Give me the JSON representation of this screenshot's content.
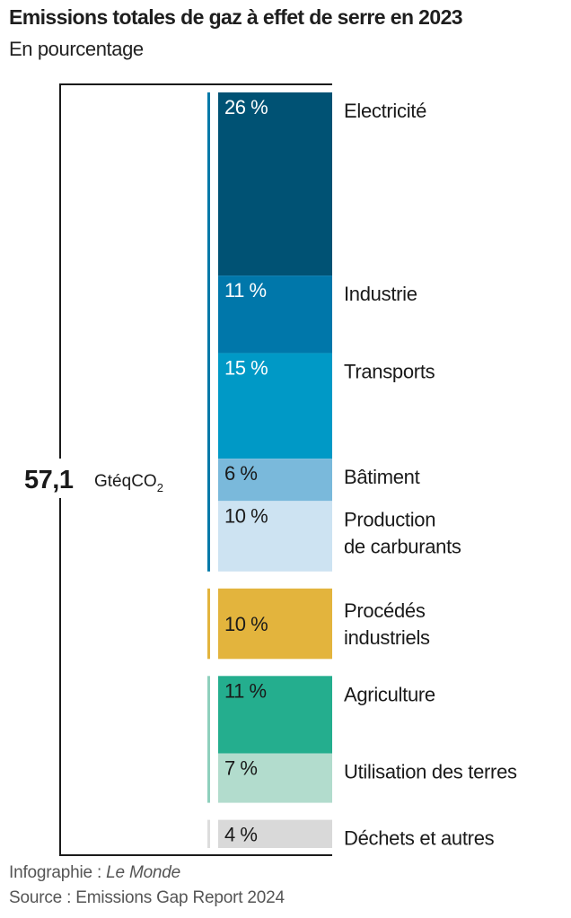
{
  "header": {
    "title": "Emissions totales de gaz à effet de serre en 2023",
    "subtitle": "En pourcentage"
  },
  "total": {
    "value": "57,1",
    "unit": "GtéqCO",
    "unit_subscript": "2"
  },
  "footer": {
    "credit_prefix": "Infographie : ",
    "credit_name": "Le Monde",
    "source": "Source : Emissions Gap Report 2024"
  },
  "chart_data": {
    "type": "bar",
    "subtype": "stacked-single-column-grouped",
    "title": "Emissions totales de gaz à effet de serre en 2023",
    "subtitle": "En pourcentage",
    "total": 57.1,
    "total_unit": "GtéqCO2",
    "unit": "%",
    "groups": [
      {
        "name": "energy",
        "indicator_color": "#0079a8",
        "segments": [
          {
            "label": "Electricité",
            "value": 26,
            "value_label": "26 %",
            "color": "#005274",
            "text_color": "#ffffff"
          },
          {
            "label": "Industrie",
            "value": 11,
            "value_label": "11 %",
            "color": "#0077aa",
            "text_color": "#ffffff"
          },
          {
            "label": "Transports",
            "value": 15,
            "value_label": "15 %",
            "color": "#0099c6",
            "text_color": "#ffffff"
          },
          {
            "label": "Bâtiment",
            "value": 6,
            "value_label": "6 %",
            "color": "#7ab9db",
            "text_color": "#1a1a1a"
          },
          {
            "label": "Production de carburants",
            "label_lines": [
              "Production",
              "de carburants"
            ],
            "value": 10,
            "value_label": "10 %",
            "color": "#cde3f2",
            "text_color": "#1a1a1a"
          }
        ]
      },
      {
        "name": "industrial-processes",
        "indicator_color": "#e3b43d",
        "segments": [
          {
            "label": "Procédés industriels",
            "label_lines": [
              "Procédés",
              "industriels"
            ],
            "value": 10,
            "value_label": "10 %",
            "color": "#e3b43d",
            "text_color": "#1a1a1a"
          }
        ]
      },
      {
        "name": "land",
        "indicator_color": "#8fd0bd",
        "segments": [
          {
            "label": "Agriculture",
            "value": 11,
            "value_label": "11 %",
            "color": "#24ae8e",
            "text_color": "#1a1a1a"
          },
          {
            "label": "Utilisation des terres",
            "value": 7,
            "value_label": "7 %",
            "color": "#b2dccd",
            "text_color": "#1a1a1a"
          }
        ]
      },
      {
        "name": "waste",
        "indicator_color": "#dddddd",
        "segments": [
          {
            "label": "Déchets et autres",
            "value": 4,
            "value_label": "4 %",
            "color": "#d9d9d9",
            "text_color": "#1a1a1a"
          }
        ]
      }
    ]
  }
}
